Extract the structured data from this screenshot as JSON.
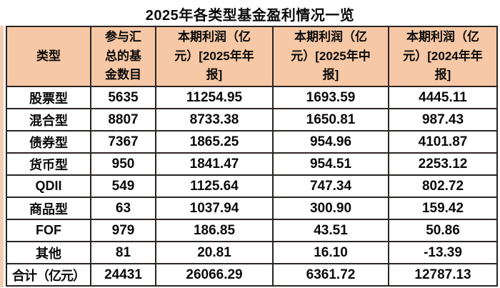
{
  "title": "2025年各类型基金盈利情况一览",
  "colors": {
    "header_bg": "#f6c8a5",
    "border": "#2b2423",
    "text": "#0a0a0a",
    "page_bg": "#ffffff",
    "left_strip": "#f2cfae"
  },
  "headers_display": [
    "类型",
    "参与汇\n总的基\n金数目",
    "本期利润（亿\n元）[2025年年\n报]",
    "本期利润（亿\n元）[2025年中\n报]",
    "本期利润（亿\n元）[2024年年\n报]"
  ],
  "chart_data": {
    "type": "table",
    "title": "2025年各类型基金盈利情况一览",
    "columns": [
      "类型",
      "参与汇总的基金数目",
      "本期利润（亿元）[2025年年报]",
      "本期利润（亿元）[2025年中报]",
      "本期利润（亿元）[2024年年报]"
    ],
    "rows": [
      [
        "股票型",
        "5635",
        "11254.95",
        "1693.59",
        "4445.11"
      ],
      [
        "混合型",
        "8807",
        "8733.38",
        "1650.81",
        "987.43"
      ],
      [
        "债券型",
        "7367",
        "1865.25",
        "954.96",
        "4101.87"
      ],
      [
        "货币型",
        "950",
        "1841.47",
        "954.51",
        "2253.12"
      ],
      [
        "QDII",
        "549",
        "1125.64",
        "747.34",
        "802.72"
      ],
      [
        "商品型",
        "63",
        "1037.94",
        "300.90",
        "159.42"
      ],
      [
        "FOF",
        "979",
        "186.85",
        "43.51",
        "50.86"
      ],
      [
        "其他",
        "81",
        "20.81",
        "16.10",
        "-13.39"
      ],
      [
        "合计（亿元）",
        "24431",
        "26066.29",
        "6361.72",
        "12787.13"
      ]
    ]
  }
}
